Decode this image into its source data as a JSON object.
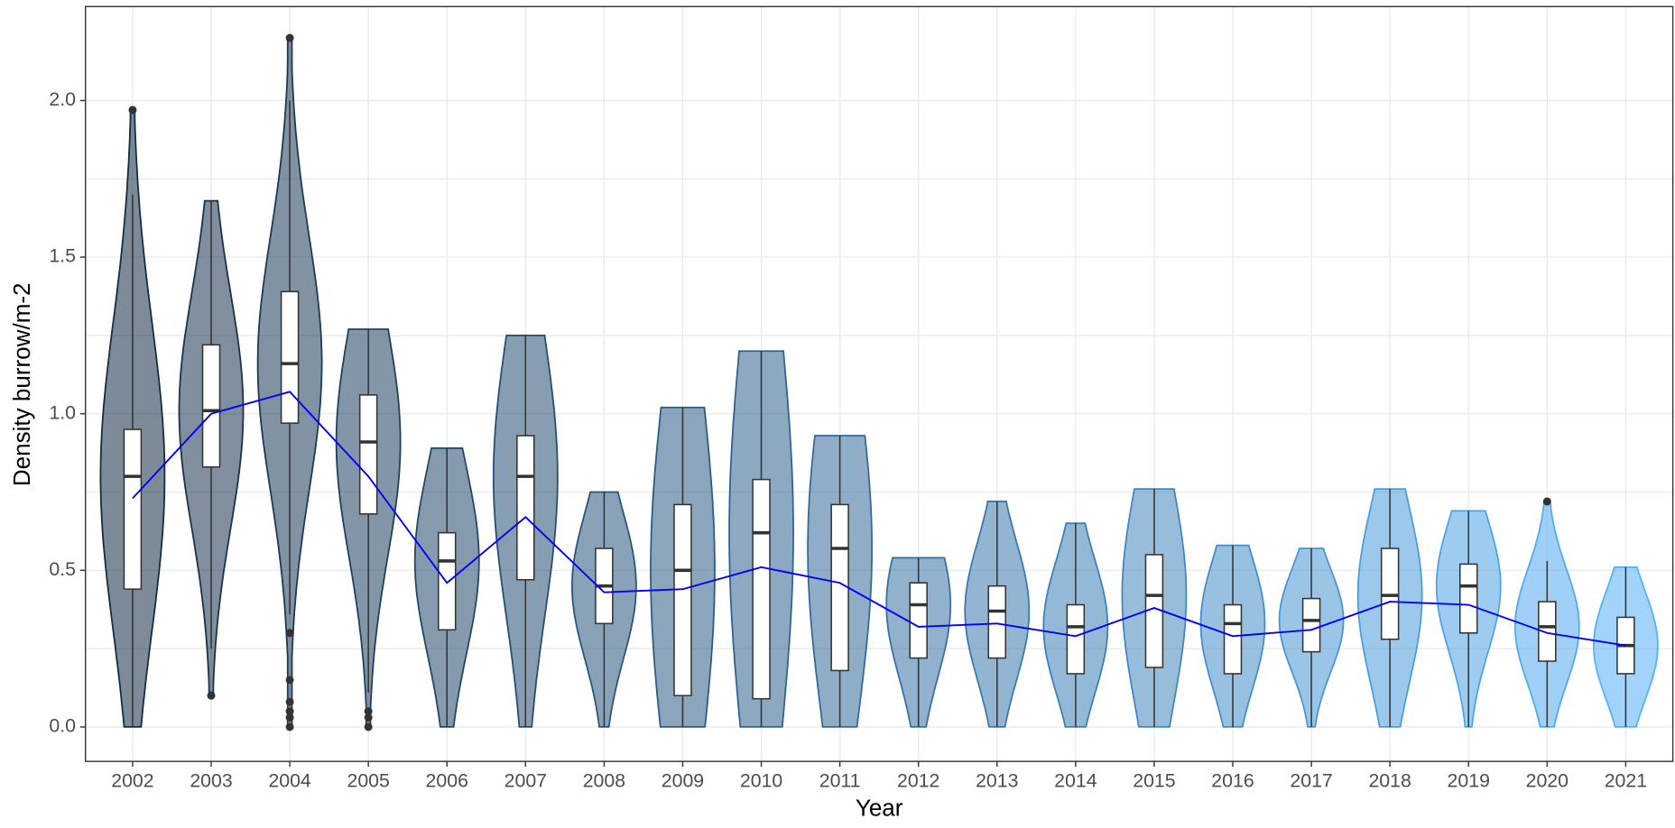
{
  "chart_data": {
    "type": "violin",
    "xlabel": "Year",
    "ylabel": "Density burrow/m-2",
    "categories": [
      "2002",
      "2003",
      "2004",
      "2005",
      "2006",
      "2007",
      "2008",
      "2009",
      "2010",
      "2011",
      "2012",
      "2013",
      "2014",
      "2015",
      "2016",
      "2017",
      "2018",
      "2019",
      "2020",
      "2021"
    ],
    "colors": [
      "#132B43",
      "#17324D",
      "#1A3956",
      "#1E405F",
      "#214769",
      "#254E72",
      "#28557C",
      "#2C5C85",
      "#2F638F",
      "#336A98",
      "#3671A2",
      "#3A79AB",
      "#3D80B5",
      "#4187BE",
      "#448EC8",
      "#4895D1",
      "#4B9CDB",
      "#4FA3E4",
      "#52AAED",
      "#56B1F7"
    ],
    "violin_min": [
      0,
      0.1,
      0,
      0,
      0,
      0,
      0,
      0,
      0,
      0,
      0,
      0,
      0,
      0,
      0,
      0,
      0,
      0,
      0,
      0
    ],
    "violin_max": [
      1.97,
      1.68,
      2.2,
      1.27,
      0.89,
      1.25,
      0.75,
      1.02,
      1.2,
      0.93,
      0.54,
      0.72,
      0.65,
      0.76,
      0.58,
      0.57,
      0.76,
      0.69,
      0.72,
      0.51
    ],
    "lower": [
      0,
      0.25,
      0.36,
      0.11,
      0,
      0,
      0,
      0,
      0,
      0,
      0,
      0,
      0,
      0,
      0,
      0,
      0,
      0,
      0,
      0
    ],
    "q1": [
      0.44,
      0.83,
      0.97,
      0.68,
      0.31,
      0.47,
      0.33,
      0.1,
      0.09,
      0.18,
      0.22,
      0.22,
      0.17,
      0.19,
      0.17,
      0.24,
      0.28,
      0.3,
      0.21,
      0.17
    ],
    "median": [
      0.8,
      1.01,
      1.16,
      0.91,
      0.53,
      0.8,
      0.45,
      0.5,
      0.62,
      0.57,
      0.39,
      0.37,
      0.32,
      0.42,
      0.33,
      0.34,
      0.42,
      0.45,
      0.32,
      0.26
    ],
    "q3": [
      0.95,
      1.22,
      1.39,
      1.06,
      0.62,
      0.93,
      0.57,
      0.71,
      0.79,
      0.71,
      0.46,
      0.45,
      0.39,
      0.55,
      0.39,
      0.41,
      0.57,
      0.52,
      0.4,
      0.35
    ],
    "upper": [
      1.7,
      1.68,
      2.0,
      1.27,
      0.89,
      1.25,
      0.75,
      1.02,
      1.2,
      0.93,
      0.54,
      0.72,
      0.65,
      0.76,
      0.58,
      0.57,
      0.76,
      0.69,
      0.53,
      0.51
    ],
    "outliers": [
      [
        1.97
      ],
      [
        0.1
      ],
      [
        2.2,
        0.3,
        0.15,
        0.08,
        0.05,
        0.03,
        0.0
      ],
      [
        0.05,
        0.03,
        0.0
      ],
      [],
      [],
      [],
      [],
      [],
      [],
      [],
      [],
      [],
      [],
      [],
      [],
      [],
      [],
      [
        0.72
      ],
      []
    ],
    "mean": [
      0.73,
      1.0,
      1.07,
      0.8,
      0.46,
      0.67,
      0.43,
      0.44,
      0.51,
      0.46,
      0.32,
      0.33,
      0.29,
      0.38,
      0.29,
      0.31,
      0.4,
      0.39,
      0.3,
      0.26
    ],
    "mean_color": "#0000ff",
    "ylim": [
      -0.11,
      2.3
    ],
    "yticks": [
      {
        "value": 0,
        "label": "0.0"
      },
      0.5,
      {
        "value": 1,
        "label": "1.0"
      },
      1.5,
      {
        "value": 2,
        "label": "2.0"
      }
    ],
    "grid": true
  }
}
